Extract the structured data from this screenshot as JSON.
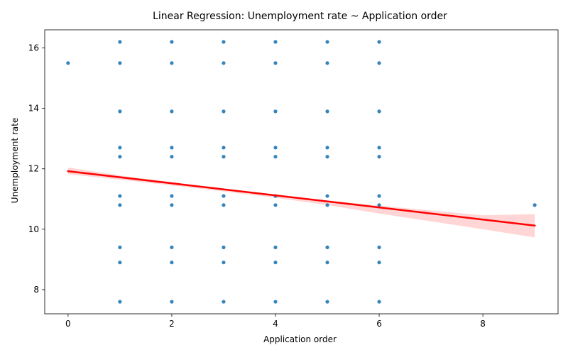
{
  "chart_data": {
    "type": "scatter",
    "title": "Linear Regression: Unemployment rate ~ Application order",
    "xlabel": "Application order",
    "ylabel": "Unemployment rate",
    "xlim": [
      -0.45,
      9.45
    ],
    "ylim": [
      7.2,
      16.6
    ],
    "xticks": [
      0,
      2,
      4,
      6,
      8
    ],
    "yticks": [
      8,
      10,
      12,
      14,
      16
    ],
    "grid": false,
    "colors": {
      "points": "#1f77b4",
      "regression": "#ff0000",
      "ci_band": "#ffb3b3"
    },
    "points": [
      [
        0,
        15.5
      ],
      [
        1,
        16.2
      ],
      [
        1,
        15.5
      ],
      [
        1,
        13.9
      ],
      [
        1,
        12.7
      ],
      [
        1,
        12.4
      ],
      [
        1,
        11.1
      ],
      [
        1,
        10.8
      ],
      [
        1,
        9.4
      ],
      [
        1,
        8.9
      ],
      [
        1,
        7.6
      ],
      [
        2,
        16.2
      ],
      [
        2,
        15.5
      ],
      [
        2,
        13.9
      ],
      [
        2,
        12.7
      ],
      [
        2,
        12.4
      ],
      [
        2,
        11.1
      ],
      [
        2,
        10.8
      ],
      [
        2,
        9.4
      ],
      [
        2,
        8.9
      ],
      [
        2,
        7.6
      ],
      [
        3,
        16.2
      ],
      [
        3,
        15.5
      ],
      [
        3,
        13.9
      ],
      [
        3,
        12.7
      ],
      [
        3,
        12.4
      ],
      [
        3,
        11.1
      ],
      [
        3,
        10.8
      ],
      [
        3,
        9.4
      ],
      [
        3,
        8.9
      ],
      [
        3,
        7.6
      ],
      [
        4,
        16.2
      ],
      [
        4,
        15.5
      ],
      [
        4,
        13.9
      ],
      [
        4,
        12.7
      ],
      [
        4,
        12.4
      ],
      [
        4,
        11.1
      ],
      [
        4,
        10.8
      ],
      [
        4,
        9.4
      ],
      [
        4,
        8.9
      ],
      [
        4,
        7.6
      ],
      [
        5,
        16.2
      ],
      [
        5,
        15.5
      ],
      [
        5,
        13.9
      ],
      [
        5,
        12.7
      ],
      [
        5,
        12.4
      ],
      [
        5,
        11.1
      ],
      [
        5,
        10.8
      ],
      [
        5,
        9.4
      ],
      [
        5,
        8.9
      ],
      [
        5,
        7.6
      ],
      [
        6,
        16.2
      ],
      [
        6,
        15.5
      ],
      [
        6,
        13.9
      ],
      [
        6,
        12.7
      ],
      [
        6,
        12.4
      ],
      [
        6,
        11.1
      ],
      [
        6,
        10.8
      ],
      [
        6,
        9.4
      ],
      [
        6,
        8.9
      ],
      [
        6,
        7.6
      ],
      [
        9,
        10.8
      ]
    ],
    "regression": {
      "x": [
        0,
        9
      ],
      "y": [
        11.92,
        10.12
      ]
    },
    "confidence_band": {
      "x": [
        0,
        1,
        2,
        3,
        4,
        5,
        6,
        7,
        8,
        9
      ],
      "lower": [
        11.82,
        11.64,
        11.45,
        11.25,
        11.04,
        10.8,
        10.52,
        10.26,
        10.0,
        9.73
      ],
      "upper": [
        12.04,
        11.78,
        11.56,
        11.35,
        11.15,
        10.95,
        10.78,
        10.62,
        10.46,
        10.5
      ]
    }
  }
}
